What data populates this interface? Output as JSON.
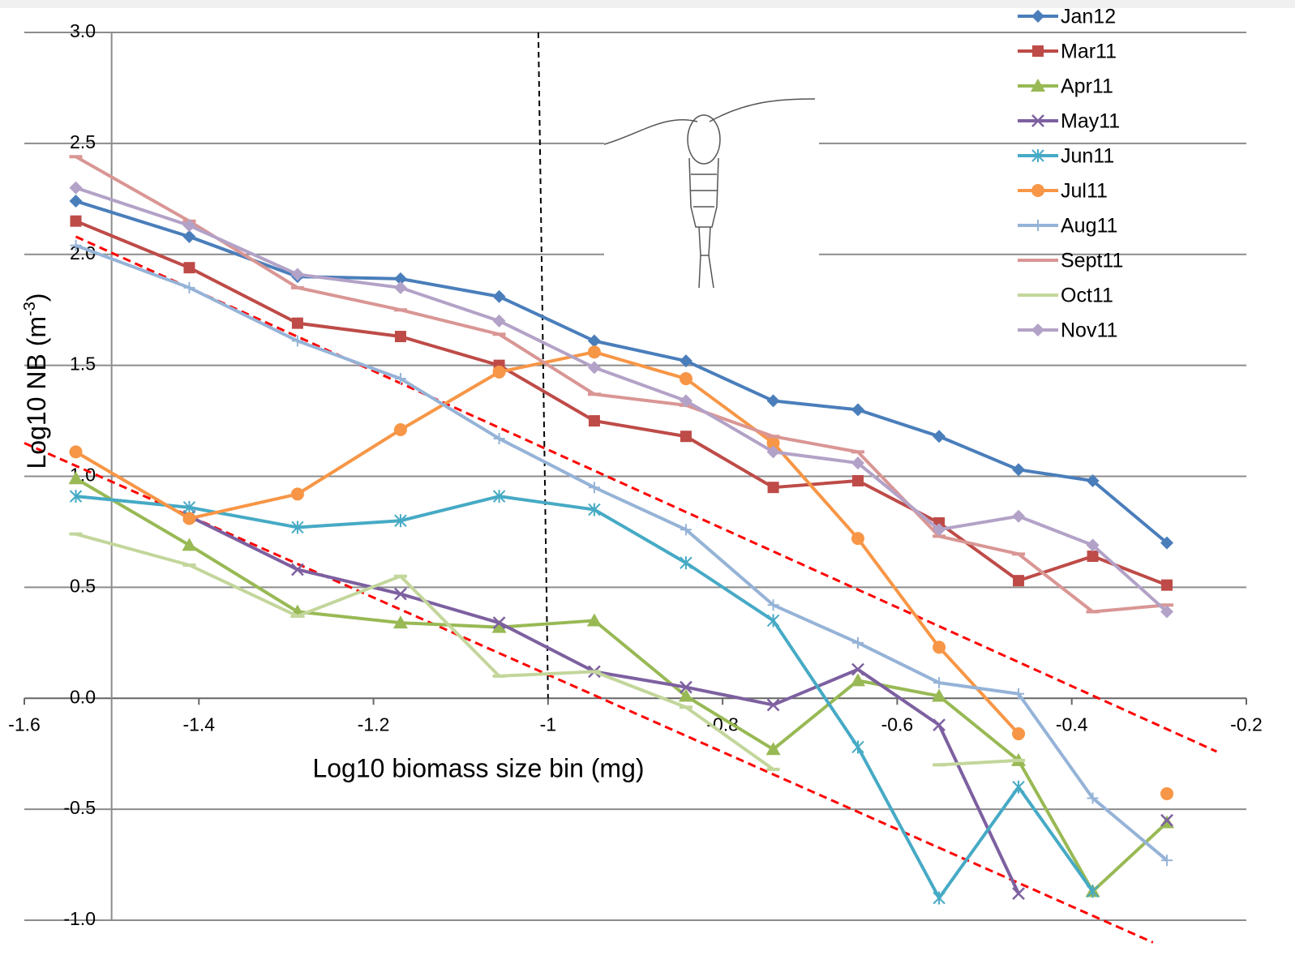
{
  "chart_data": {
    "type": "line",
    "xlabel": "Log10 biomass size bin (mg)",
    "ylabel": {
      "text": "Log10 NB (m",
      "sup": "-3",
      "close": ")"
    },
    "xlim": [
      -1.6,
      -0.2
    ],
    "xticks": [
      -1.6,
      -1.4,
      -1.2,
      -1,
      -0.8,
      -0.6,
      -0.4,
      -0.2
    ],
    "ylim": [
      -1.0,
      3.0
    ],
    "yticks": [
      {
        "value": 3.0,
        "label": "3.0"
      },
      2.5,
      {
        "value": 2.0,
        "label": "2.0"
      },
      1.5,
      {
        "value": 1.0,
        "label": "1.0"
      },
      0.5,
      {
        "value": 0.0,
        "label": "0.0"
      },
      -0.5,
      {
        "value": -1.0,
        "label": "-1.0"
      }
    ],
    "grid": true,
    "y_axis_at": -1.5,
    "legend": "top-right",
    "x": [
      -1.541,
      -1.411,
      -1.287,
      -1.169,
      -1.056,
      -0.947,
      -0.842,
      -0.742,
      -0.645,
      -0.552,
      -0.461,
      -0.376,
      -0.291
    ],
    "series": [
      {
        "name": "Jan12",
        "color": "#4a7ebb",
        "marker": "diamond",
        "values": [
          2.24,
          2.08,
          1.9,
          1.89,
          1.81,
          1.61,
          1.52,
          1.34,
          1.3,
          1.18,
          1.03,
          0.98,
          0.7
        ]
      },
      {
        "name": "Mar11",
        "color": "#be4b48",
        "marker": "square",
        "values": [
          2.15,
          1.94,
          1.69,
          1.63,
          1.5,
          1.25,
          1.18,
          0.95,
          0.98,
          0.79,
          0.53,
          0.64,
          0.51
        ]
      },
      {
        "name": "Apr11",
        "color": "#98b954",
        "marker": "triangle",
        "values": [
          0.99,
          0.69,
          0.39,
          0.34,
          0.32,
          0.35,
          0.01,
          -0.23,
          0.08,
          0.01,
          -0.28,
          -0.87,
          -0.56
        ]
      },
      {
        "name": "May11",
        "color": "#7d60a0",
        "marker": "x",
        "values": [
          null,
          0.82,
          0.58,
          0.47,
          0.34,
          0.12,
          0.05,
          -0.03,
          0.13,
          -0.12,
          -0.88,
          null,
          -0.55
        ]
      },
      {
        "name": "Jun11",
        "color": "#46aac5",
        "marker": "asterisk",
        "values": [
          0.91,
          0.86,
          0.77,
          0.8,
          0.91,
          0.85,
          0.61,
          0.35,
          -0.22,
          -0.9,
          -0.4,
          -0.87,
          null
        ]
      },
      {
        "name": "Jul11",
        "color": "#f79646",
        "marker": "circle",
        "values": [
          1.11,
          0.81,
          0.92,
          1.21,
          1.47,
          1.56,
          1.44,
          1.15,
          0.72,
          0.23,
          -0.16,
          null,
          -0.43
        ]
      },
      {
        "name": "Aug11",
        "color": "#95b3d7",
        "marker": "plus",
        "values": [
          2.04,
          1.85,
          1.61,
          1.44,
          1.17,
          0.95,
          0.76,
          0.42,
          0.25,
          0.07,
          0.02,
          -0.45,
          -0.73
        ]
      },
      {
        "name": "Sept11",
        "color": "#d99694",
        "marker": "dash",
        "values": [
          2.44,
          2.15,
          1.85,
          1.75,
          1.64,
          1.37,
          1.32,
          1.18,
          1.11,
          0.73,
          0.65,
          0.39,
          0.42
        ]
      },
      {
        "name": "Oct11",
        "color": "#c3d69b",
        "marker": "dash",
        "values": [
          0.74,
          0.6,
          0.37,
          0.55,
          0.1,
          0.12,
          -0.04,
          -0.32,
          null,
          -0.3,
          -0.28,
          null,
          null
        ]
      },
      {
        "name": "Nov11",
        "color": "#b3a2c7",
        "marker": "diamond",
        "values": [
          2.3,
          2.13,
          1.91,
          1.85,
          1.7,
          1.49,
          1.34,
          1.11,
          1.06,
          0.76,
          0.82,
          0.69,
          0.39
        ]
      }
    ],
    "fit_lines": [
      {
        "color": "#ff0000",
        "x": [
          -1.541,
          -0.234
        ],
        "y": [
          2.08,
          -0.24
        ]
      },
      {
        "color": "#ff0000",
        "x": [
          -1.6,
          -0.307
        ],
        "y": [
          1.15,
          -1.1
        ]
      }
    ],
    "vline": {
      "x": -1,
      "color": "#000000"
    }
  }
}
